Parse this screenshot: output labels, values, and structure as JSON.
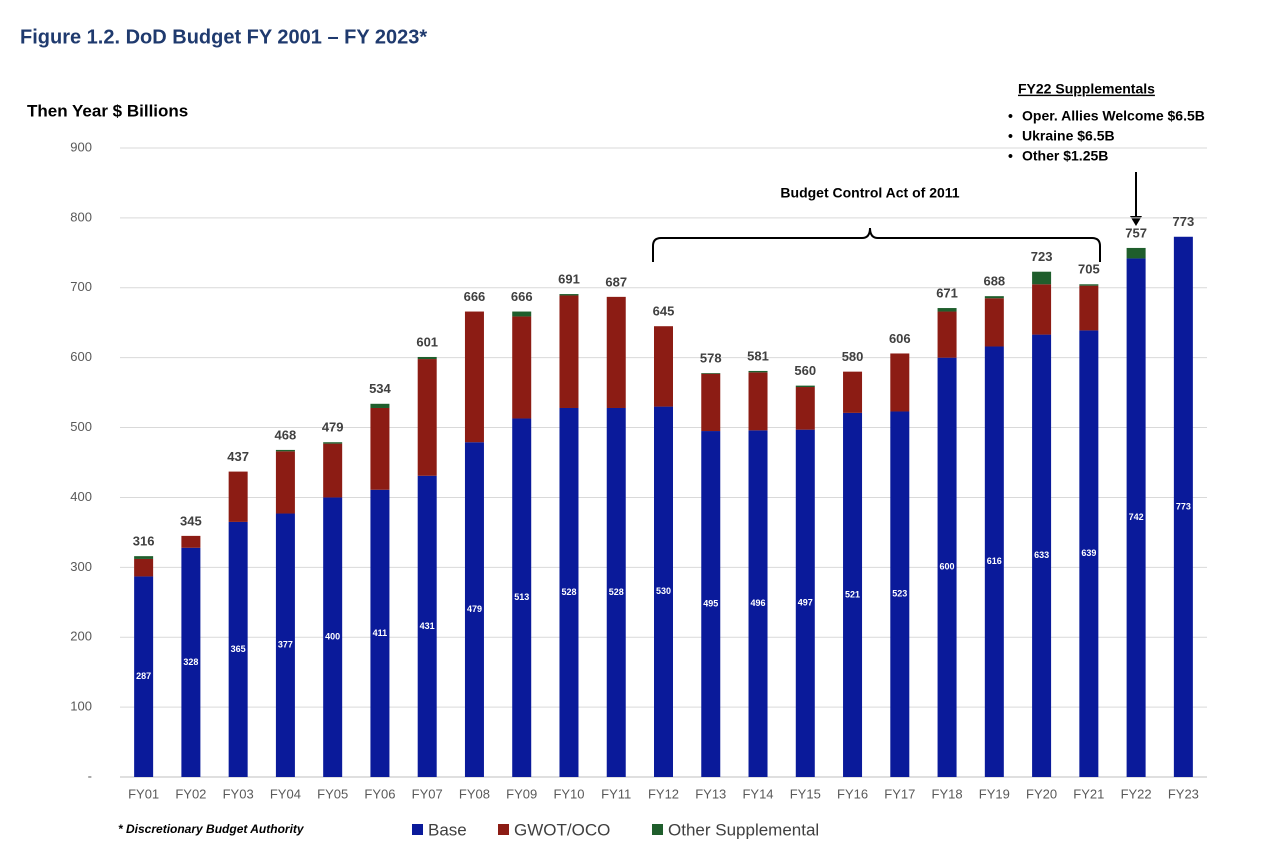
{
  "chart_data": {
    "type": "bar",
    "stacked": true,
    "title": "Figure 1.2.  DoD Budget FY 2001 – FY 2023*",
    "y_label": "Then Year $ Billions",
    "footnote": "* Discretionary Budget Authority",
    "bracket_label": "Budget Control Act of 2011",
    "callout": {
      "title": "FY22 Supplementals",
      "items": [
        "Oper. Allies Welcome $6.5B",
        "Ukraine $6.5B",
        "Other $1.25B"
      ]
    },
    "categories": [
      "FY01",
      "FY02",
      "FY03",
      "FY04",
      "FY05",
      "FY06",
      "FY07",
      "FY08",
      "FY09",
      "FY10",
      "FY11",
      "FY12",
      "FY13",
      "FY14",
      "FY15",
      "FY16",
      "FY17",
      "FY18",
      "FY19",
      "FY20",
      "FY21",
      "FY22",
      "FY23"
    ],
    "series": [
      {
        "name": "Base",
        "color": "#0a1a9a",
        "values": [
          287,
          328,
          365,
          377,
          400,
          411,
          431,
          479,
          513,
          528,
          528,
          530,
          495,
          496,
          497,
          521,
          523,
          600,
          616,
          633,
          639,
          742,
          773
        ]
      },
      {
        "name": "GWOT/OCO",
        "color": "#8c1c14",
        "values": [
          25,
          17,
          72,
          89,
          77,
          117,
          167,
          187,
          146,
          161,
          159,
          115,
          82,
          83,
          61,
          59,
          83,
          66,
          69,
          72,
          64,
          0,
          0
        ]
      },
      {
        "name": "Other Supplemental",
        "color": "#1f5e2c",
        "values": [
          4,
          0,
          0,
          2,
          2,
          6,
          3,
          0,
          7,
          2,
          0,
          0,
          1,
          2,
          2,
          0,
          0,
          5,
          3,
          18,
          2,
          15,
          0
        ]
      }
    ],
    "totals": [
      316,
      345,
      437,
      468,
      479,
      534,
      601,
      666,
      666,
      691,
      687,
      645,
      578,
      581,
      560,
      580,
      606,
      671,
      688,
      723,
      705,
      757,
      773
    ],
    "ylim": [
      0,
      900
    ],
    "yticks": [
      {
        "value": 0,
        "label": "-"
      },
      100,
      200,
      300,
      400,
      500,
      600,
      700,
      800,
      900
    ],
    "grid": true
  }
}
